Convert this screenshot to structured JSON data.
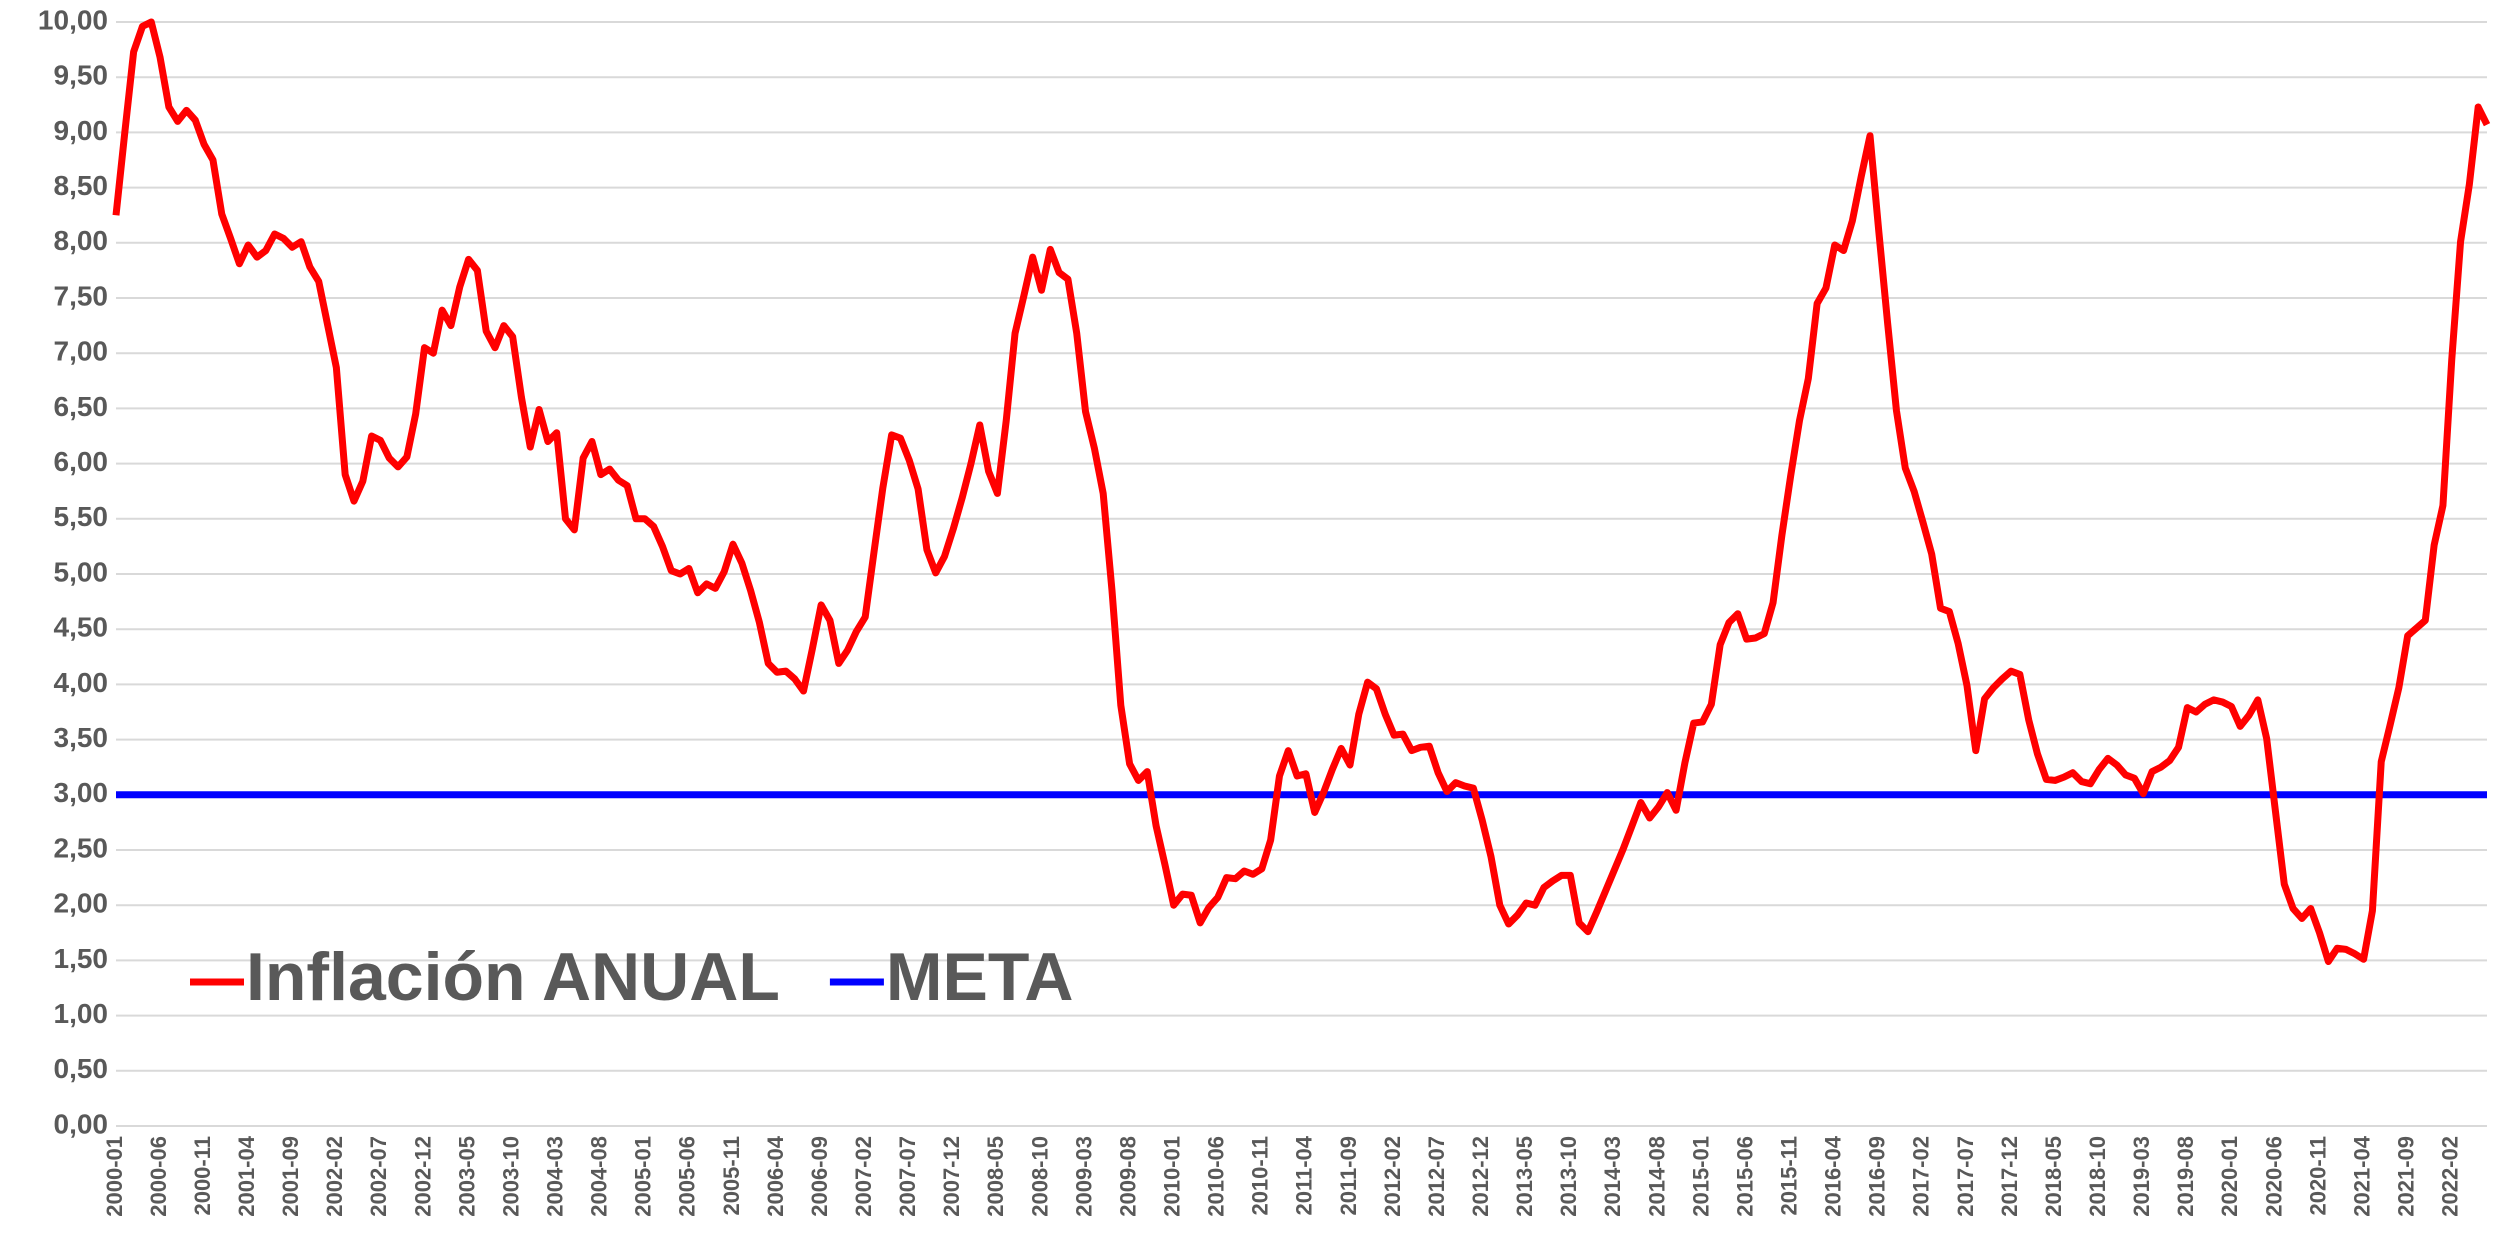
{
  "chart_data": {
    "type": "line",
    "categories": [
      "2000-01",
      null,
      null,
      null,
      null,
      "2000-06",
      null,
      null,
      null,
      null,
      "2000-11",
      null,
      null,
      null,
      null,
      "2001-04",
      null,
      null,
      null,
      null,
      "2001-09",
      null,
      null,
      null,
      null,
      "2002-02",
      null,
      null,
      null,
      null,
      "2002-07",
      null,
      null,
      null,
      null,
      "2002-12",
      null,
      null,
      null,
      null,
      "2003-05",
      null,
      null,
      null,
      null,
      "2003-10",
      null,
      null,
      null,
      null,
      "2004-03",
      null,
      null,
      null,
      null,
      "2004-08",
      null,
      null,
      null,
      null,
      "2005-01",
      null,
      null,
      null,
      null,
      "2005-06",
      null,
      null,
      null,
      null,
      "2005-11",
      null,
      null,
      null,
      null,
      "2006-04",
      null,
      null,
      null,
      null,
      "2006-09",
      null,
      null,
      null,
      null,
      "2007-02",
      null,
      null,
      null,
      null,
      "2007-07",
      null,
      null,
      null,
      null,
      "2007-12",
      null,
      null,
      null,
      null,
      "2008-05",
      null,
      null,
      null,
      null,
      "2008-10",
      null,
      null,
      null,
      null,
      "2009-03",
      null,
      null,
      null,
      null,
      "2009-08",
      null,
      null,
      null,
      null,
      "2010-01",
      null,
      null,
      null,
      null,
      "2010-06",
      null,
      null,
      null,
      null,
      "2010-11",
      null,
      null,
      null,
      null,
      "2011-04",
      null,
      null,
      null,
      null,
      "2011-09",
      null,
      null,
      null,
      null,
      "2012-02",
      null,
      null,
      null,
      null,
      "2012-07",
      null,
      null,
      null,
      null,
      "2012-12",
      null,
      null,
      null,
      null,
      "2013-05",
      null,
      null,
      null,
      null,
      "2013-10",
      null,
      null,
      null,
      null,
      "2014-03",
      null,
      null,
      null,
      null,
      "2014-08",
      null,
      null,
      null,
      null,
      "2015-01",
      null,
      null,
      null,
      null,
      "2015-06",
      null,
      null,
      null,
      null,
      "2015-11",
      null,
      null,
      null,
      null,
      "2016-04",
      null,
      null,
      null,
      null,
      "2016-09",
      null,
      null,
      null,
      null,
      "2017-02",
      null,
      null,
      null,
      null,
      "2017-07",
      null,
      null,
      null,
      null,
      "2017-12",
      null,
      null,
      null,
      null,
      "2018-05",
      null,
      null,
      null,
      null,
      "2018-10",
      null,
      null,
      null,
      null,
      "2019-03",
      null,
      null,
      null,
      null,
      "2019-08",
      null,
      null,
      null,
      null,
      "2020-01",
      null,
      null,
      null,
      null,
      "2020-06",
      null,
      null,
      null,
      null,
      "2020-11",
      null,
      null,
      null,
      null,
      "2021-04",
      null,
      null,
      null,
      null,
      "2021-09",
      null,
      null,
      null,
      null,
      "2022-02",
      null,
      null,
      null,
      null
    ],
    "series": [
      {
        "name": "Inflación ANUAL",
        "color": "#ff0000",
        "values": [
          8.25,
          9.0,
          9.73,
          9.96,
          10.0,
          9.68,
          9.23,
          9.1,
          9.2,
          9.11,
          8.89,
          8.75,
          8.26,
          8.04,
          7.81,
          7.98,
          7.87,
          7.93,
          8.08,
          8.04,
          7.96,
          8.01,
          7.78,
          7.65,
          7.26,
          6.87,
          5.9,
          5.66,
          5.84,
          6.25,
          6.21,
          6.05,
          5.97,
          6.06,
          6.45,
          7.05,
          7.0,
          7.39,
          7.25,
          7.6,
          7.85,
          7.75,
          7.2,
          7.05,
          7.25,
          7.15,
          6.6,
          6.15,
          6.49,
          6.2,
          6.28,
          5.5,
          5.4,
          6.05,
          6.2,
          5.9,
          5.95,
          5.85,
          5.8,
          5.5,
          5.5,
          5.43,
          5.25,
          5.03,
          5.0,
          5.05,
          4.83,
          4.91,
          4.87,
          5.02,
          5.27,
          5.1,
          4.85,
          4.56,
          4.19,
          4.11,
          4.12,
          4.05,
          3.94,
          4.32,
          4.72,
          4.58,
          4.19,
          4.31,
          4.48,
          4.61,
          5.2,
          5.78,
          6.26,
          6.23,
          6.03,
          5.77,
          5.22,
          5.01,
          5.16,
          5.41,
          5.69,
          6.0,
          6.35,
          5.93,
          5.73,
          6.39,
          7.18,
          7.52,
          7.87,
          7.57,
          7.94,
          7.73,
          7.67,
          7.18,
          6.47,
          6.14,
          5.73,
          4.85,
          3.81,
          3.28,
          3.13,
          3.21,
          2.72,
          2.37,
          2.0,
          2.1,
          2.09,
          1.84,
          1.98,
          2.07,
          2.25,
          2.24,
          2.31,
          2.28,
          2.33,
          2.59,
          3.17,
          3.4,
          3.17,
          3.19,
          2.84,
          3.02,
          3.23,
          3.42,
          3.27,
          3.73,
          4.02,
          3.96,
          3.73,
          3.54,
          3.55,
          3.4,
          3.43,
          3.44,
          3.2,
          3.03,
          3.11,
          3.08,
          3.06,
          2.77,
          2.44,
          2.0,
          1.83,
          1.91,
          2.02,
          2.0,
          2.16,
          2.22,
          2.27,
          2.27,
          1.84,
          1.76,
          1.94,
          2.13,
          2.32,
          2.51,
          2.72,
          2.93,
          2.79,
          2.89,
          3.02,
          2.86,
          3.29,
          3.65,
          3.66,
          3.82,
          4.36,
          4.56,
          4.64,
          4.41,
          4.42,
          4.46,
          4.74,
          5.35,
          5.89,
          6.39,
          6.77,
          7.45,
          7.59,
          7.98,
          7.93,
          8.2,
          8.6,
          8.97,
          8.1,
          7.27,
          6.48,
          5.96,
          5.75,
          5.47,
          5.18,
          4.69,
          4.66,
          4.37,
          3.99,
          3.4,
          3.87,
          3.97,
          4.05,
          4.12,
          4.09,
          3.68,
          3.37,
          3.14,
          3.13,
          3.16,
          3.2,
          3.12,
          3.1,
          3.23,
          3.33,
          3.27,
          3.18,
          3.15,
          3.01,
          3.21,
          3.25,
          3.31,
          3.43,
          3.79,
          3.75,
          3.82,
          3.86,
          3.84,
          3.8,
          3.62,
          3.72,
          3.86,
          3.51,
          2.85,
          2.19,
          1.97,
          1.88,
          1.97,
          1.75,
          1.49,
          1.61,
          1.6,
          1.56,
          1.51,
          1.95,
          3.3,
          3.63,
          3.97,
          4.44,
          4.51,
          4.58,
          5.26,
          5.62,
          6.94,
          8.01,
          8.53,
          9.23,
          9.07
        ]
      },
      {
        "name": "META",
        "color": "#0000ff",
        "values": [
          3,
          3,
          3,
          3,
          3,
          3,
          3,
          3,
          3,
          3,
          3,
          3,
          3,
          3,
          3,
          3,
          3,
          3,
          3,
          3,
          3,
          3,
          3,
          3,
          3,
          3,
          3,
          3,
          3,
          3,
          3,
          3,
          3,
          3,
          3,
          3,
          3,
          3,
          3,
          3,
          3,
          3,
          3,
          3,
          3,
          3,
          3,
          3,
          3,
          3,
          3,
          3,
          3,
          3,
          3,
          3,
          3,
          3,
          3,
          3,
          3,
          3,
          3,
          3,
          3,
          3,
          3,
          3,
          3,
          3,
          3,
          3,
          3,
          3,
          3,
          3,
          3,
          3,
          3,
          3,
          3,
          3,
          3,
          3,
          3,
          3,
          3,
          3,
          3,
          3,
          3,
          3,
          3,
          3,
          3,
          3,
          3,
          3,
          3,
          3,
          3,
          3,
          3,
          3,
          3,
          3,
          3,
          3,
          3,
          3,
          3,
          3,
          3,
          3,
          3,
          3,
          3,
          3,
          3,
          3,
          3,
          3,
          3,
          3,
          3,
          3,
          3,
          3,
          3,
          3,
          3,
          3,
          3,
          3,
          3,
          3,
          3,
          3,
          3,
          3,
          3,
          3,
          3,
          3,
          3,
          3,
          3,
          3,
          3,
          3,
          3,
          3,
          3,
          3,
          3,
          3,
          3,
          3,
          3,
          3,
          3,
          3,
          3,
          3,
          3,
          3,
          3,
          3,
          3,
          3,
          3,
          3,
          3,
          3,
          3,
          3,
          3,
          3,
          3,
          3,
          3,
          3,
          3,
          3,
          3,
          3,
          3,
          3,
          3,
          3,
          3,
          3,
          3,
          3,
          3,
          3,
          3,
          3,
          3,
          3,
          3,
          3,
          3,
          3,
          3,
          3,
          3,
          3,
          3,
          3,
          3,
          3,
          3,
          3,
          3,
          3,
          3,
          3,
          3,
          3,
          3,
          3,
          3,
          3,
          3,
          3,
          3,
          3,
          3,
          3,
          3,
          3,
          3,
          3,
          3,
          3,
          3,
          3,
          3,
          3,
          3,
          3,
          3,
          3,
          3,
          3,
          3,
          3,
          3,
          3,
          3,
          3,
          3,
          3,
          3,
          3,
          3,
          3,
          3,
          3,
          3,
          3,
          3,
          3,
          3,
          3,
          3,
          3,
          3,
          3
        ]
      }
    ],
    "ylim": [
      0,
      10
    ],
    "yticks": [
      {
        "value": 0,
        "label": "0,00"
      },
      {
        "value": 0.5,
        "label": "0,50"
      },
      {
        "value": 1,
        "label": "1,00"
      },
      {
        "value": 1.5,
        "label": "1,50"
      },
      {
        "value": 2,
        "label": "2,00"
      },
      {
        "value": 2.5,
        "label": "2,50"
      },
      {
        "value": 3,
        "label": "3,00"
      },
      {
        "value": 3.5,
        "label": "3,50"
      },
      {
        "value": 4,
        "label": "4,00"
      },
      {
        "value": 4.5,
        "label": "4,50"
      },
      {
        "value": 5,
        "label": "5,00"
      },
      {
        "value": 5.5,
        "label": "5,50"
      },
      {
        "value": 6,
        "label": "6,00"
      },
      {
        "value": 6.5,
        "label": "6,50"
      },
      {
        "value": 7,
        "label": "7,00"
      },
      {
        "value": 7.5,
        "label": "7,50"
      },
      {
        "value": 8,
        "label": "8,00"
      },
      {
        "value": 8.5,
        "label": "8,50"
      },
      {
        "value": 9,
        "label": "9,00"
      },
      {
        "value": 9.5,
        "label": "9,50"
      },
      {
        "value": 10,
        "label": "10,00"
      }
    ],
    "grid": true,
    "legend": "lower left"
  }
}
